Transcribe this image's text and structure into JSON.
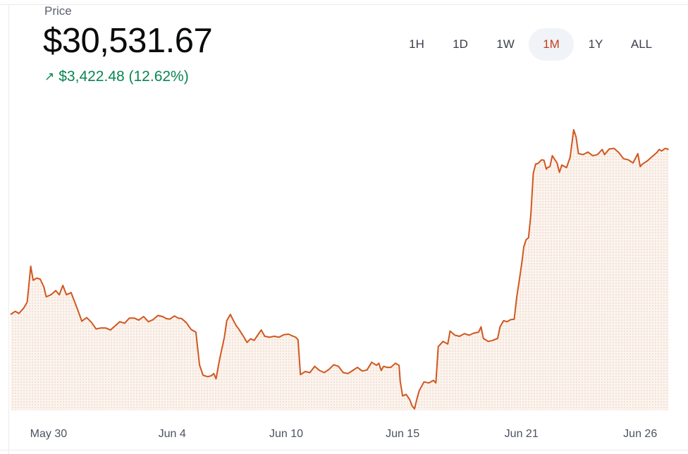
{
  "header": {
    "label": "Price",
    "price": "$30,531.67",
    "change_arrow": "↗",
    "change_text": "$3,422.48 (12.62%)"
  },
  "ranges": [
    {
      "label": "1H",
      "active": false
    },
    {
      "label": "1D",
      "active": false
    },
    {
      "label": "1W",
      "active": false
    },
    {
      "label": "1M",
      "active": true
    },
    {
      "label": "1Y",
      "active": false
    },
    {
      "label": "ALL",
      "active": false
    }
  ],
  "colors": {
    "line": "#d0571f",
    "fill_dot": "#ecc6b0",
    "positive": "#098551",
    "active_range": "#c5401a"
  },
  "chart_data": {
    "type": "area",
    "x_ticks": [
      {
        "label": "May 30",
        "day": 1.6
      },
      {
        "label": "Jun 4",
        "day": 6.8
      },
      {
        "label": "Jun 10",
        "day": 11.6
      },
      {
        "label": "Jun 15",
        "day": 16.5
      },
      {
        "label": "Jun 21",
        "day": 21.5
      },
      {
        "label": "Jun 26",
        "day": 26.5
      }
    ],
    "x_range": [
      0,
      27.8
    ],
    "y_range": [
      24800,
      31300
    ],
    "series": [
      {
        "points": [
          [
            0.0,
            27320
          ],
          [
            0.2,
            27380
          ],
          [
            0.35,
            27340
          ],
          [
            0.55,
            27440
          ],
          [
            0.7,
            27560
          ],
          [
            0.85,
            28250
          ],
          [
            0.95,
            27980
          ],
          [
            1.1,
            28020
          ],
          [
            1.25,
            28000
          ],
          [
            1.4,
            27850
          ],
          [
            1.5,
            27660
          ],
          [
            1.7,
            27700
          ],
          [
            1.9,
            27780
          ],
          [
            2.05,
            27700
          ],
          [
            2.2,
            27880
          ],
          [
            2.35,
            27700
          ],
          [
            2.55,
            27740
          ],
          [
            2.8,
            27440
          ],
          [
            3.0,
            27190
          ],
          [
            3.2,
            27260
          ],
          [
            3.4,
            27170
          ],
          [
            3.6,
            27040
          ],
          [
            3.8,
            27060
          ],
          [
            4.0,
            27060
          ],
          [
            4.2,
            27020
          ],
          [
            4.4,
            27100
          ],
          [
            4.6,
            27180
          ],
          [
            4.8,
            27150
          ],
          [
            5.0,
            27250
          ],
          [
            5.2,
            27250
          ],
          [
            5.4,
            27210
          ],
          [
            5.6,
            27280
          ],
          [
            5.8,
            27180
          ],
          [
            6.0,
            27220
          ],
          [
            6.2,
            27300
          ],
          [
            6.4,
            27280
          ],
          [
            6.55,
            27240
          ],
          [
            6.7,
            27230
          ],
          [
            6.9,
            27290
          ],
          [
            7.05,
            27250
          ],
          [
            7.2,
            27240
          ],
          [
            7.4,
            27160
          ],
          [
            7.6,
            27030
          ],
          [
            7.8,
            26980
          ],
          [
            7.95,
            26350
          ],
          [
            8.1,
            26150
          ],
          [
            8.3,
            26120
          ],
          [
            8.45,
            26140
          ],
          [
            8.55,
            26180
          ],
          [
            8.65,
            26080
          ],
          [
            8.8,
            26460
          ],
          [
            9.0,
            26880
          ],
          [
            9.1,
            27200
          ],
          [
            9.25,
            27320
          ],
          [
            9.35,
            27230
          ],
          [
            9.5,
            27100
          ],
          [
            9.6,
            27040
          ],
          [
            9.8,
            26900
          ],
          [
            9.95,
            26780
          ],
          [
            10.1,
            26850
          ],
          [
            10.25,
            26820
          ],
          [
            10.4,
            26920
          ],
          [
            10.55,
            27020
          ],
          [
            10.7,
            26900
          ],
          [
            10.9,
            26880
          ],
          [
            11.1,
            26900
          ],
          [
            11.3,
            26880
          ],
          [
            11.5,
            26930
          ],
          [
            11.7,
            26940
          ],
          [
            11.9,
            26900
          ],
          [
            12.0,
            26880
          ],
          [
            12.1,
            26830
          ],
          [
            12.2,
            26160
          ],
          [
            12.4,
            26220
          ],
          [
            12.6,
            26200
          ],
          [
            12.8,
            26320
          ],
          [
            13.0,
            26240
          ],
          [
            13.2,
            26200
          ],
          [
            13.4,
            26260
          ],
          [
            13.6,
            26350
          ],
          [
            13.8,
            26320
          ],
          [
            14.0,
            26200
          ],
          [
            14.2,
            26180
          ],
          [
            14.4,
            26240
          ],
          [
            14.6,
            26300
          ],
          [
            14.8,
            26230
          ],
          [
            15.0,
            26250
          ],
          [
            15.2,
            26400
          ],
          [
            15.4,
            26340
          ],
          [
            15.5,
            26380
          ],
          [
            15.6,
            26240
          ],
          [
            15.7,
            26320
          ],
          [
            15.85,
            26300
          ],
          [
            16.0,
            26300
          ],
          [
            16.2,
            26380
          ],
          [
            16.35,
            26340
          ],
          [
            16.4,
            26030
          ],
          [
            16.5,
            25750
          ],
          [
            16.65,
            25780
          ],
          [
            16.8,
            25680
          ],
          [
            16.9,
            25560
          ],
          [
            17.0,
            25500
          ],
          [
            17.1,
            25690
          ],
          [
            17.2,
            25850
          ],
          [
            17.4,
            26020
          ],
          [
            17.6,
            26000
          ],
          [
            17.8,
            26050
          ],
          [
            17.9,
            26000
          ],
          [
            18.0,
            26700
          ],
          [
            18.2,
            26800
          ],
          [
            18.4,
            26750
          ],
          [
            18.5,
            27000
          ],
          [
            18.7,
            26920
          ],
          [
            18.9,
            26900
          ],
          [
            19.1,
            26950
          ],
          [
            19.3,
            26920
          ],
          [
            19.5,
            26960
          ],
          [
            19.7,
            26980
          ],
          [
            19.8,
            27080
          ],
          [
            19.9,
            26860
          ],
          [
            20.1,
            26800
          ],
          [
            20.3,
            26820
          ],
          [
            20.5,
            26860
          ],
          [
            20.6,
            27080
          ],
          [
            20.75,
            27200
          ],
          [
            20.9,
            27180
          ],
          [
            21.05,
            27220
          ],
          [
            21.2,
            27230
          ],
          [
            21.3,
            27640
          ],
          [
            21.45,
            28100
          ],
          [
            21.55,
            28420
          ],
          [
            21.6,
            28620
          ],
          [
            21.7,
            28760
          ],
          [
            21.8,
            28800
          ],
          [
            21.9,
            29250
          ],
          [
            22.0,
            30040
          ],
          [
            22.1,
            30220
          ],
          [
            22.2,
            30230
          ],
          [
            22.35,
            30300
          ],
          [
            22.45,
            30290
          ],
          [
            22.55,
            30120
          ],
          [
            22.6,
            30150
          ],
          [
            22.7,
            30170
          ],
          [
            22.8,
            30380
          ],
          [
            22.9,
            30310
          ],
          [
            23.0,
            30240
          ],
          [
            23.1,
            30060
          ],
          [
            23.2,
            30200
          ],
          [
            23.4,
            30150
          ],
          [
            23.55,
            30350
          ],
          [
            23.7,
            30880
          ],
          [
            23.8,
            30740
          ],
          [
            23.9,
            30420
          ],
          [
            24.1,
            30400
          ],
          [
            24.3,
            30450
          ],
          [
            24.5,
            30380
          ],
          [
            24.7,
            30400
          ],
          [
            24.9,
            30500
          ],
          [
            25.0,
            30400
          ],
          [
            25.2,
            30510
          ],
          [
            25.4,
            30520
          ],
          [
            25.6,
            30440
          ],
          [
            25.8,
            30320
          ],
          [
            26.0,
            30300
          ],
          [
            26.2,
            30240
          ],
          [
            26.4,
            30420
          ],
          [
            26.5,
            30170
          ],
          [
            26.6,
            30220
          ],
          [
            26.8,
            30280
          ],
          [
            27.0,
            30360
          ],
          [
            27.2,
            30440
          ],
          [
            27.3,
            30500
          ],
          [
            27.4,
            30470
          ],
          [
            27.55,
            30520
          ],
          [
            27.7,
            30500
          ]
        ]
      }
    ]
  }
}
